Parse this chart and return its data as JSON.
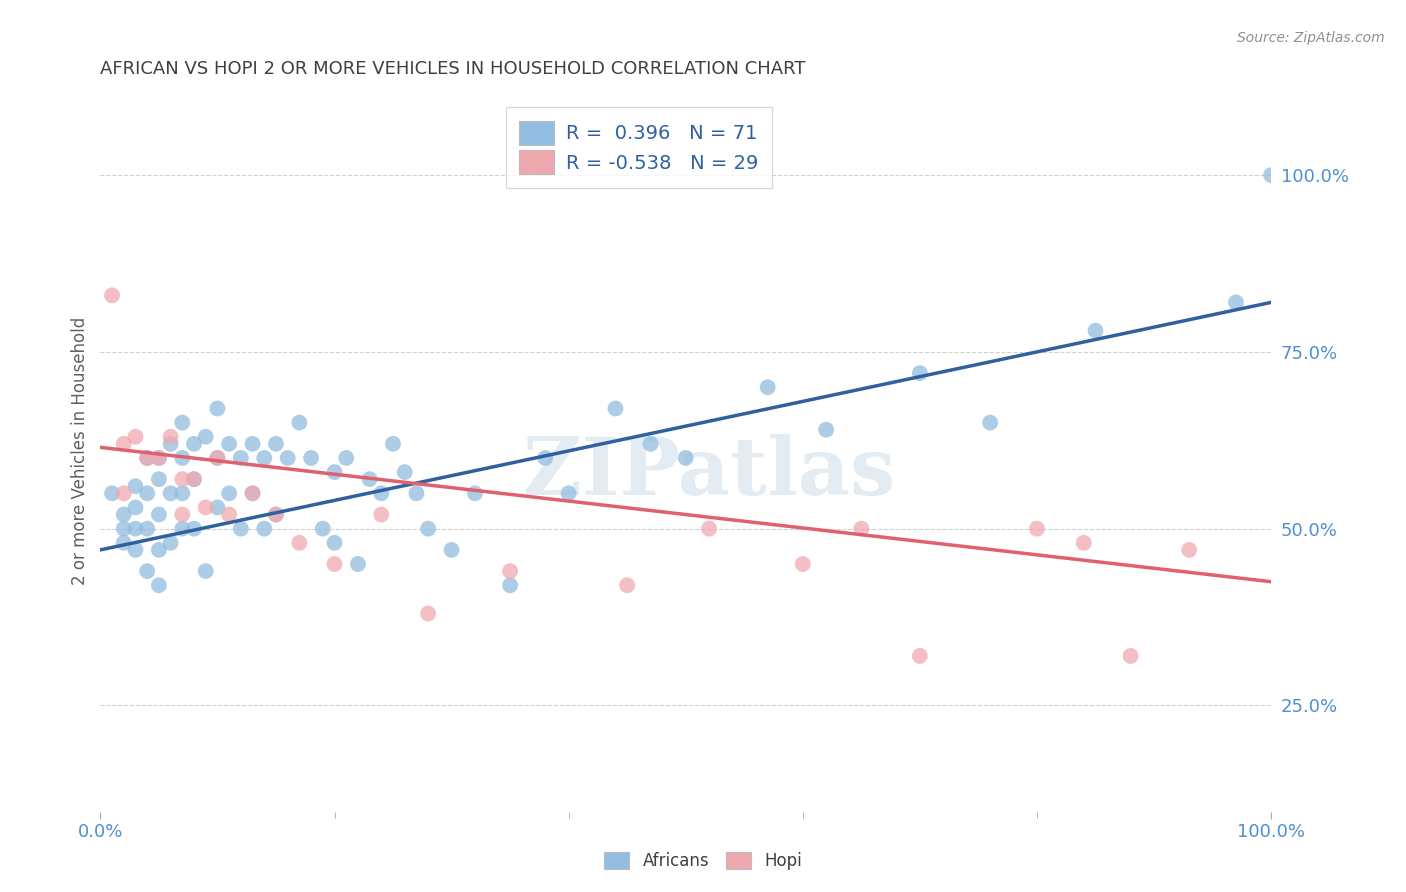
{
  "title": "AFRICAN VS HOPI 2 OR MORE VEHICLES IN HOUSEHOLD CORRELATION CHART",
  "source": "Source: ZipAtlas.com",
  "ylabel": "2 or more Vehicles in Household",
  "watermark": "ZIPatlas",
  "africans_R": 0.396,
  "africans_N": 71,
  "hopi_R": -0.538,
  "hopi_N": 29,
  "xlim": [
    0.0,
    1.0
  ],
  "ylim": [
    0.1,
    1.12
  ],
  "ytick_positions": [
    0.25,
    0.5,
    0.75,
    1.0
  ],
  "ytick_labels": [
    "25.0%",
    "50.0%",
    "75.0%",
    "100.0%"
  ],
  "africans_color": "#92bde0",
  "hopi_color": "#f0a8b0",
  "africans_line_color": "#3060a0",
  "hopi_line_color": "#e06070",
  "title_color": "#404040",
  "axis_label_color": "#606060",
  "tick_label_color": "#5090d0",
  "source_color": "#909090",
  "grid_color": "#d0d0d0",
  "africans_line_start": 0.47,
  "africans_line_end": 0.82,
  "hopi_line_start": 0.615,
  "hopi_line_end": 0.425,
  "africans_x": [
    0.01,
    0.02,
    0.02,
    0.02,
    0.03,
    0.03,
    0.03,
    0.03,
    0.04,
    0.04,
    0.04,
    0.04,
    0.05,
    0.05,
    0.05,
    0.05,
    0.05,
    0.06,
    0.06,
    0.06,
    0.07,
    0.07,
    0.07,
    0.07,
    0.08,
    0.08,
    0.08,
    0.09,
    0.09,
    0.1,
    0.1,
    0.1,
    0.11,
    0.11,
    0.12,
    0.12,
    0.13,
    0.13,
    0.14,
    0.14,
    0.15,
    0.15,
    0.16,
    0.17,
    0.18,
    0.19,
    0.2,
    0.2,
    0.21,
    0.22,
    0.23,
    0.24,
    0.25,
    0.26,
    0.27,
    0.28,
    0.3,
    0.32,
    0.35,
    0.38,
    0.4,
    0.44,
    0.47,
    0.5,
    0.57,
    0.62,
    0.7,
    0.76,
    0.85,
    0.97,
    1.0
  ],
  "africans_y": [
    0.55,
    0.52,
    0.5,
    0.48,
    0.56,
    0.53,
    0.5,
    0.47,
    0.6,
    0.55,
    0.5,
    0.44,
    0.6,
    0.57,
    0.52,
    0.47,
    0.42,
    0.62,
    0.55,
    0.48,
    0.65,
    0.6,
    0.55,
    0.5,
    0.62,
    0.57,
    0.5,
    0.63,
    0.44,
    0.67,
    0.6,
    0.53,
    0.62,
    0.55,
    0.6,
    0.5,
    0.62,
    0.55,
    0.6,
    0.5,
    0.62,
    0.52,
    0.6,
    0.65,
    0.6,
    0.5,
    0.58,
    0.48,
    0.6,
    0.45,
    0.57,
    0.55,
    0.62,
    0.58,
    0.55,
    0.5,
    0.47,
    0.55,
    0.42,
    0.6,
    0.55,
    0.67,
    0.62,
    0.6,
    0.7,
    0.64,
    0.72,
    0.65,
    0.78,
    0.82,
    1.0
  ],
  "hopi_x": [
    0.01,
    0.02,
    0.02,
    0.03,
    0.04,
    0.05,
    0.06,
    0.07,
    0.07,
    0.08,
    0.09,
    0.1,
    0.11,
    0.13,
    0.15,
    0.17,
    0.2,
    0.24,
    0.28,
    0.35,
    0.45,
    0.52,
    0.6,
    0.65,
    0.7,
    0.8,
    0.84,
    0.88,
    0.93
  ],
  "hopi_y": [
    0.83,
    0.62,
    0.55,
    0.63,
    0.6,
    0.6,
    0.63,
    0.57,
    0.52,
    0.57,
    0.53,
    0.6,
    0.52,
    0.55,
    0.52,
    0.48,
    0.45,
    0.52,
    0.38,
    0.44,
    0.42,
    0.5,
    0.45,
    0.5,
    0.32,
    0.5,
    0.48,
    0.32,
    0.47
  ]
}
